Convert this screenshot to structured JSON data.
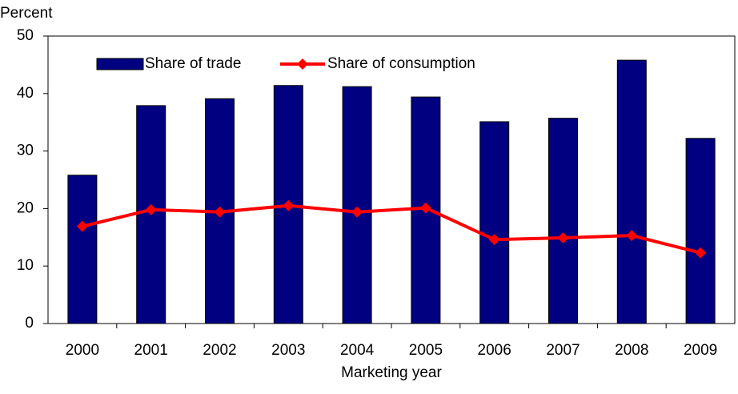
{
  "chart_data": {
    "type": "bar_line",
    "y_axis_label": "Percent",
    "x_axis_label": "Marketing year",
    "categories": [
      "2000",
      "2001",
      "2002",
      "2003",
      "2004",
      "2005",
      "2006",
      "2007",
      "2008",
      "2009"
    ],
    "series": [
      {
        "name": "Share of trade",
        "type": "bar",
        "color": "#000080",
        "values": [
          25.8,
          37.9,
          39.1,
          41.4,
          41.2,
          39.4,
          35.1,
          35.7,
          45.8,
          32.2
        ]
      },
      {
        "name": "Share of consumption",
        "type": "line",
        "color": "#ff0000",
        "values": [
          16.9,
          19.8,
          19.4,
          20.5,
          19.4,
          20.1,
          14.6,
          14.9,
          15.3,
          12.3
        ]
      }
    ],
    "ylim": [
      0,
      50
    ],
    "yticks": [
      0,
      10,
      20,
      30,
      40,
      50
    ],
    "grid": false,
    "legend": "top"
  }
}
